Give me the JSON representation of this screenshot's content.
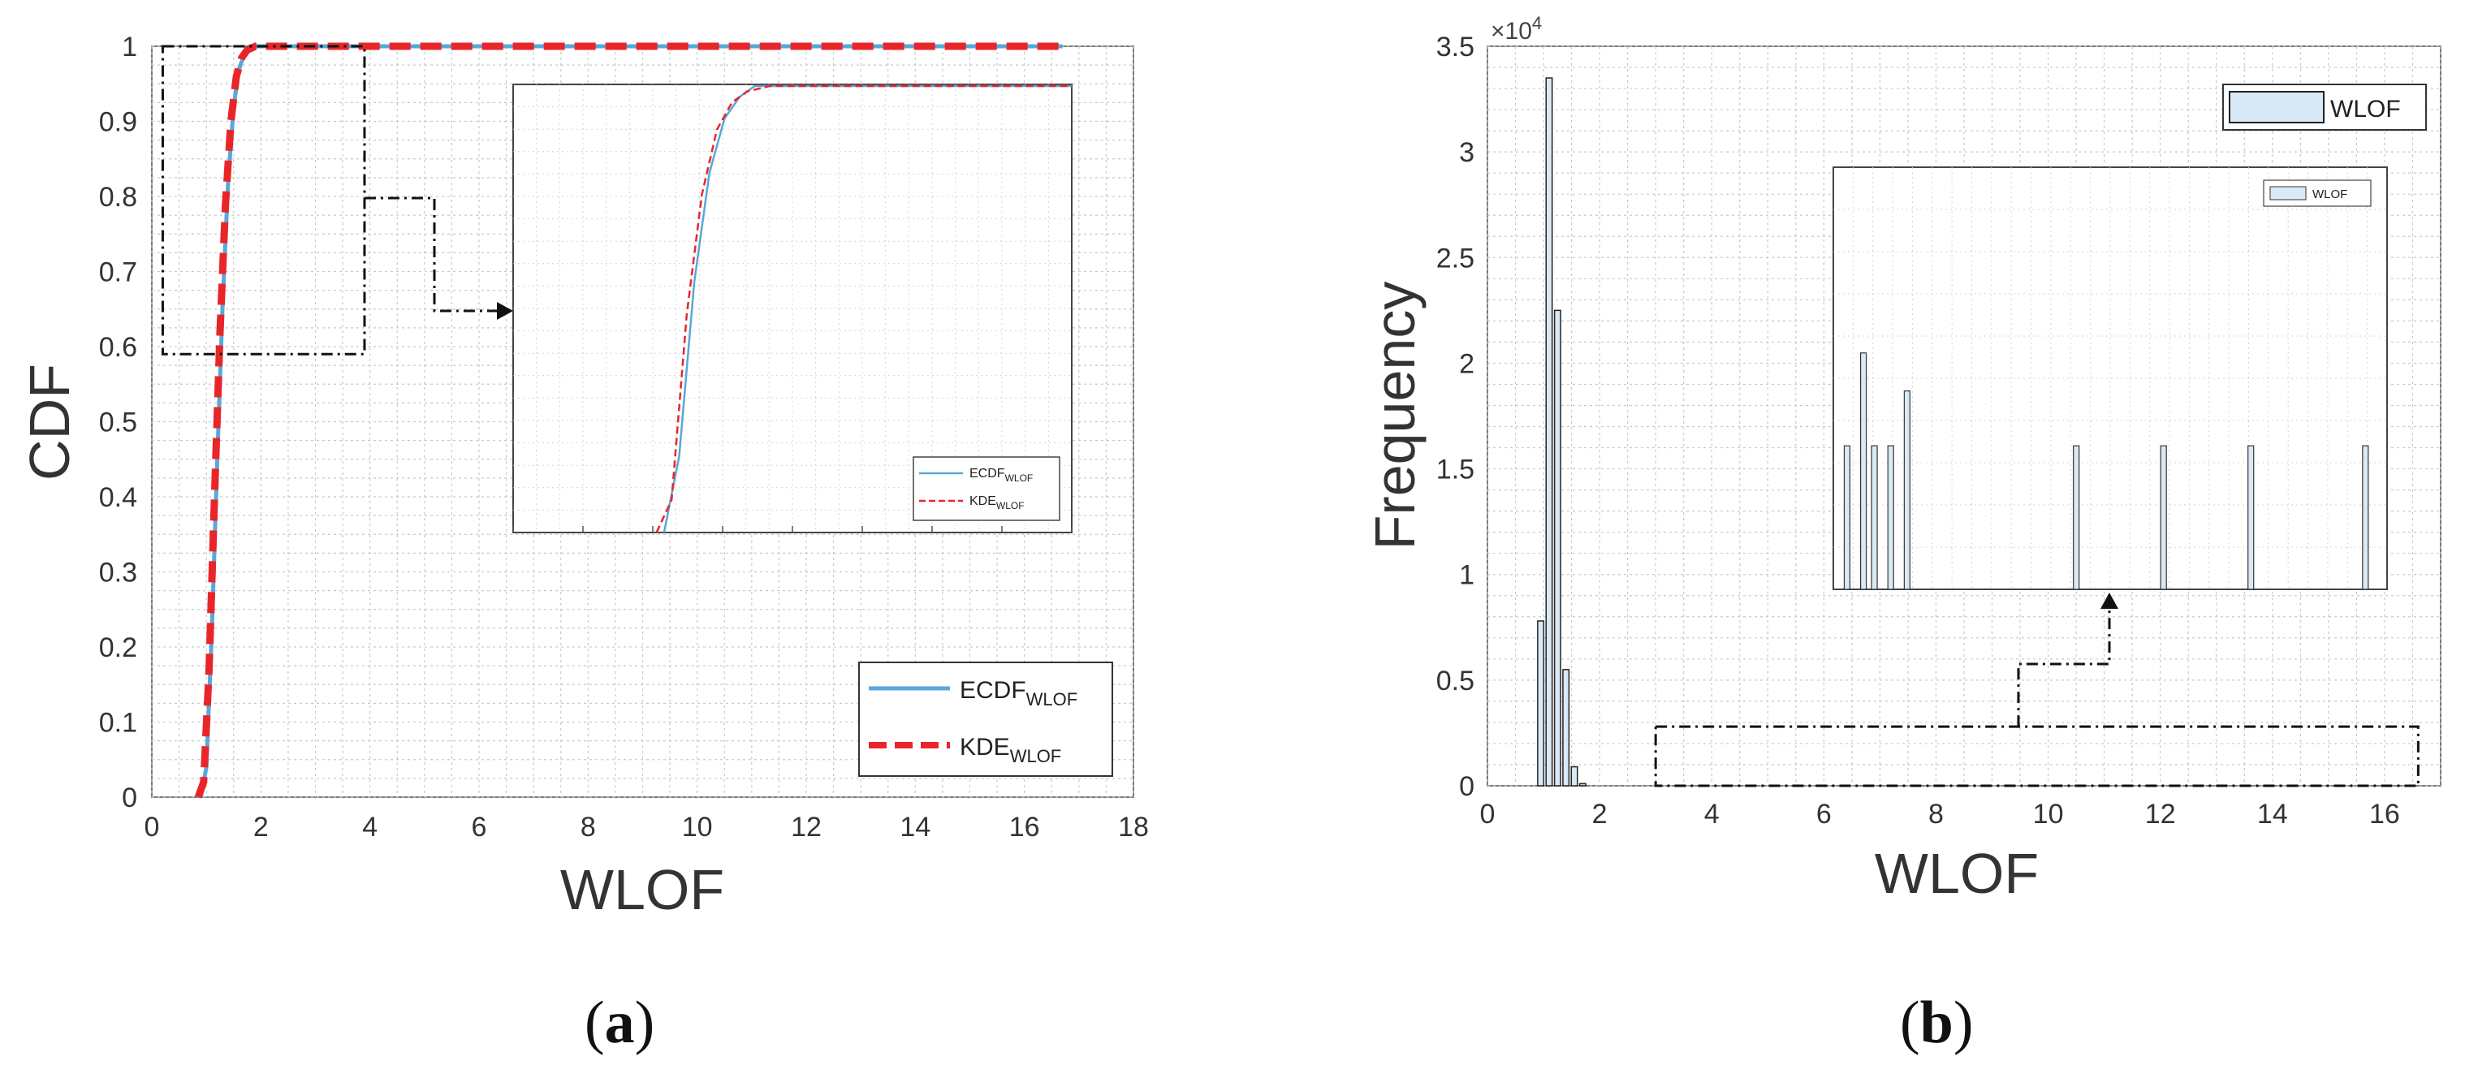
{
  "chart_data": [
    {
      "panel": "a",
      "caption_letter": "a",
      "type": "line",
      "xlabel": "WLOF",
      "ylabel": "CDF",
      "xlim": [
        0,
        18
      ],
      "ylim": [
        0,
        1
      ],
      "xticks": [
        "0",
        "2",
        "4",
        "6",
        "8",
        "10",
        "12",
        "14",
        "16",
        "18"
      ],
      "yticks": [
        "0",
        "0.1",
        "0.2",
        "0.3",
        "0.4",
        "0.5",
        "0.6",
        "0.7",
        "0.8",
        "0.9",
        "1"
      ],
      "grid": true,
      "legend_position": "bottom-right",
      "series": [
        {
          "name": "ECDF",
          "name_sub": "WLOF",
          "color": "#5aa7d8",
          "style": "solid",
          "x": [
            0.9,
            1.0,
            1.1,
            1.2,
            1.3,
            1.4,
            1.5,
            1.6,
            1.7,
            1.8,
            2.0,
            16.7
          ],
          "y": [
            0.0,
            0.04,
            0.22,
            0.45,
            0.66,
            0.82,
            0.92,
            0.97,
            0.99,
            1.0,
            1.0,
            1.0
          ]
        },
        {
          "name": "KDE",
          "name_sub": "WLOF",
          "color": "#e8262a",
          "style": "dashed",
          "x": [
            0.85,
            0.95,
            1.05,
            1.15,
            1.25,
            1.35,
            1.45,
            1.55,
            1.65,
            1.75,
            1.9,
            16.7
          ],
          "y": [
            0.0,
            0.02,
            0.17,
            0.4,
            0.62,
            0.79,
            0.9,
            0.96,
            0.985,
            0.995,
            1.0,
            1.0
          ]
        }
      ],
      "zoom_box": {
        "x": [
          0.2,
          3.9
        ],
        "y": [
          0.59,
          1.0
        ]
      },
      "inset": {
        "legend": [
          {
            "name": "ECDF",
            "name_sub": "WLOF"
          },
          {
            "name": "KDE",
            "name_sub": "WLOF"
          }
        ]
      }
    },
    {
      "panel": "b",
      "caption_letter": "b",
      "type": "bar",
      "xlabel": "WLOF",
      "ylabel": "Frequency",
      "y_exponent_base": "×10",
      "y_exponent_power": "4",
      "xlim": [
        0,
        17
      ],
      "ylim": [
        0,
        3.5
      ],
      "xticks": [
        "0",
        "2",
        "4",
        "6",
        "8",
        "10",
        "12",
        "14",
        "16"
      ],
      "yticks": [
        "0",
        "0.5",
        "1",
        "1.5",
        "2",
        "2.5",
        "3",
        "3.5"
      ],
      "grid": true,
      "legend_position": "top-right",
      "legend_label": "WLOF",
      "bar_color": "#d9e9f5",
      "bins": [
        0.95,
        1.1,
        1.25,
        1.4,
        1.55,
        1.7
      ],
      "values": [
        0.78,
        3.35,
        2.25,
        0.55,
        0.09,
        0.01
      ],
      "zoom_box": {
        "x": [
          3.0,
          16.6
        ],
        "y": [
          0,
          0.28
        ]
      },
      "inset": {
        "legend_label": "WLOF",
        "bars_x": [
          0.02,
          0.05,
          0.07,
          0.1,
          0.13,
          0.44,
          0.6,
          0.76,
          0.97
        ],
        "bars_h": [
          0.34,
          0.56,
          0.34,
          0.34,
          0.47,
          0.34,
          0.34,
          0.34,
          0.34
        ]
      }
    }
  ]
}
